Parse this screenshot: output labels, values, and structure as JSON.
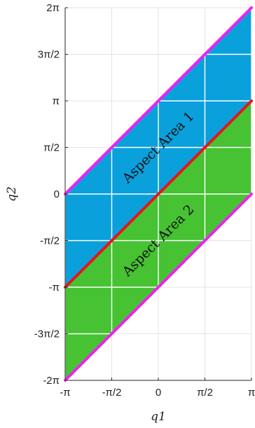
{
  "chart_data": {
    "type": "area",
    "xlabel": "q1",
    "ylabel": "q2",
    "xlim": [
      -3.14159,
      3.14159
    ],
    "ylim": [
      -6.28318,
      6.28318
    ],
    "x_ticks": [
      {
        "value": -3.14159,
        "label": "-π"
      },
      {
        "value": -1.5708,
        "label": "-π/2"
      },
      {
        "value": 0,
        "label": "0"
      },
      {
        "value": 1.5708,
        "label": "π/2"
      },
      {
        "value": 3.14159,
        "label": "π"
      }
    ],
    "y_ticks": [
      {
        "value": -6.28318,
        "label": "-2π"
      },
      {
        "value": -4.71239,
        "label": "-3π/2"
      },
      {
        "value": -3.14159,
        "label": "-π"
      },
      {
        "value": -1.5708,
        "label": "-π/2"
      },
      {
        "value": 0,
        "label": "0"
      },
      {
        "value": 1.5708,
        "label": "π/2"
      },
      {
        "value": 3.14159,
        "label": "π"
      },
      {
        "value": 4.71239,
        "label": "3π/2"
      },
      {
        "value": 6.28318,
        "label": "2π"
      }
    ],
    "grid": true,
    "regions": [
      {
        "label": "Aspect Area 1",
        "color": "#0aa0dc",
        "lower_offset": 0,
        "upper_offset": 3.14159
      },
      {
        "label": "Aspect Area 2",
        "color": "#46c232",
        "lower_offset": -3.14159,
        "upper_offset": 0
      }
    ],
    "boundary_lines": [
      {
        "color": "#ee22ee",
        "offset": 3.14159
      },
      {
        "color": "#e8141e",
        "offset": 0
      },
      {
        "color": "#ee22ee",
        "offset": -3.14159
      }
    ],
    "cell_grid_color": "#ffffff"
  }
}
